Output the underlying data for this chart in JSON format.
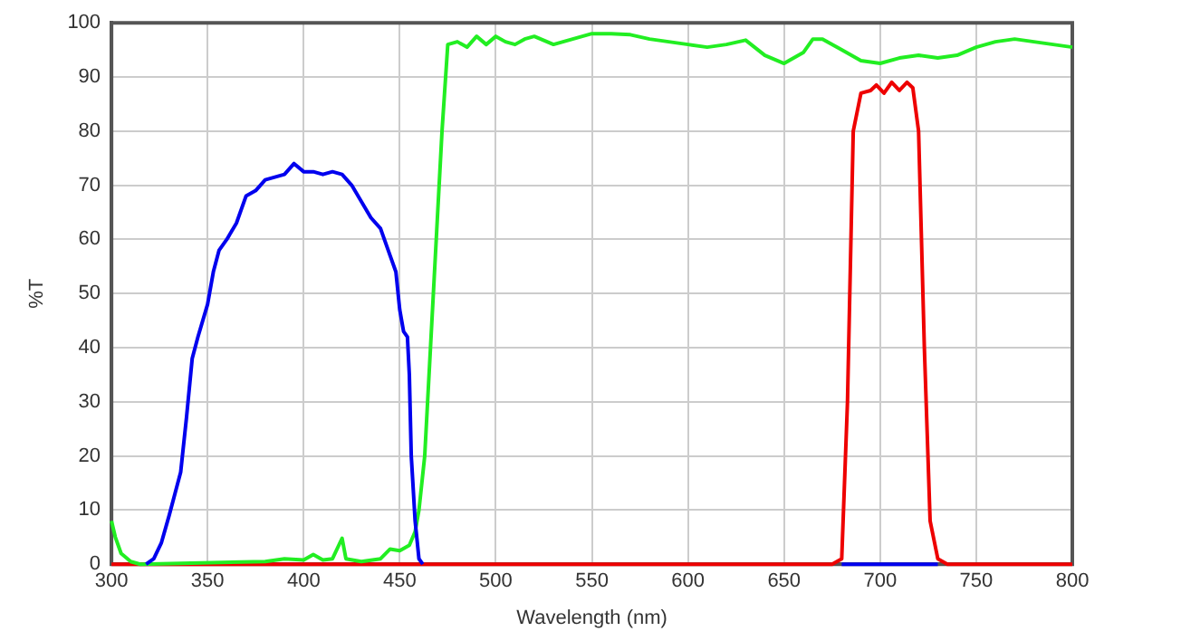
{
  "chart_data": {
    "type": "line",
    "xlabel": "Wavelength (nm)",
    "ylabel": "%T",
    "xlim": [
      300,
      800
    ],
    "xticks": [
      300,
      350,
      400,
      450,
      500,
      550,
      600,
      650,
      700,
      750,
      800
    ],
    "ylim": [
      0,
      100
    ],
    "yticks": [
      0,
      10,
      20,
      30,
      40,
      50,
      60,
      70,
      80,
      90,
      100
    ],
    "grid": true,
    "marker": "none",
    "line_style": "solid",
    "series": [
      {
        "color": "#0000ee",
        "x": [
          318,
          322,
          326,
          330,
          333,
          336,
          339,
          342,
          345,
          350,
          353,
          356,
          360,
          365,
          370,
          375,
          380,
          385,
          390,
          395,
          400,
          405,
          410,
          415,
          420,
          425,
          430,
          435,
          440,
          445,
          448,
          450,
          452,
          454,
          455,
          456,
          458,
          460,
          462,
          470,
          680,
          730
        ],
        "values": [
          0,
          1,
          4,
          9,
          13,
          17,
          27,
          38,
          42,
          48,
          54,
          58,
          60,
          63,
          68,
          69,
          71,
          71.5,
          72,
          74,
          72.5,
          72.5,
          72,
          72.5,
          72,
          70,
          67,
          64,
          62,
          57,
          54,
          47,
          43,
          42,
          35,
          20,
          8,
          1,
          0,
          null,
          0,
          0
        ]
      },
      {
        "color": "#22ee22",
        "x": [
          300,
          302,
          305,
          310,
          315,
          380,
          390,
          400,
          405,
          410,
          415,
          420,
          422,
          430,
          440,
          445,
          450,
          455,
          458,
          460,
          463,
          466,
          469,
          472,
          475,
          480,
          485,
          490,
          495,
          500,
          505,
          510,
          515,
          520,
          530,
          540,
          550,
          560,
          570,
          580,
          590,
          600,
          610,
          620,
          630,
          640,
          650,
          660,
          665,
          670,
          680,
          690,
          700,
          710,
          720,
          730,
          740,
          750,
          760,
          770,
          780,
          790,
          800
        ],
        "values": [
          8,
          5,
          2,
          0.5,
          0,
          0.5,
          1,
          0.8,
          1.8,
          0.8,
          1,
          4.8,
          1,
          0.5,
          1,
          2.8,
          2.5,
          3.5,
          6,
          10,
          20,
          40,
          60,
          80,
          96,
          96.5,
          95.5,
          97.5,
          96,
          97.5,
          96.5,
          96,
          97,
          97.5,
          96,
          97,
          98,
          98,
          97.8,
          97,
          96.5,
          96,
          95.5,
          96,
          96.8,
          94,
          92.5,
          94.5,
          97,
          97,
          95,
          93,
          92.5,
          93.5,
          94,
          93.5,
          94,
          95.5,
          96.5,
          97,
          96.5,
          96,
          95.5
        ]
      },
      {
        "color": "#ee0000",
        "x": [
          300,
          675,
          680,
          683,
          686,
          690,
          695,
          698,
          702,
          706,
          710,
          714,
          717,
          720,
          723,
          726,
          730,
          735,
          800
        ],
        "values": [
          0,
          0,
          1,
          30,
          80,
          87,
          87.5,
          88.5,
          87,
          89,
          87.5,
          89,
          88,
          80,
          40,
          8,
          1,
          0,
          0
        ]
      }
    ]
  }
}
